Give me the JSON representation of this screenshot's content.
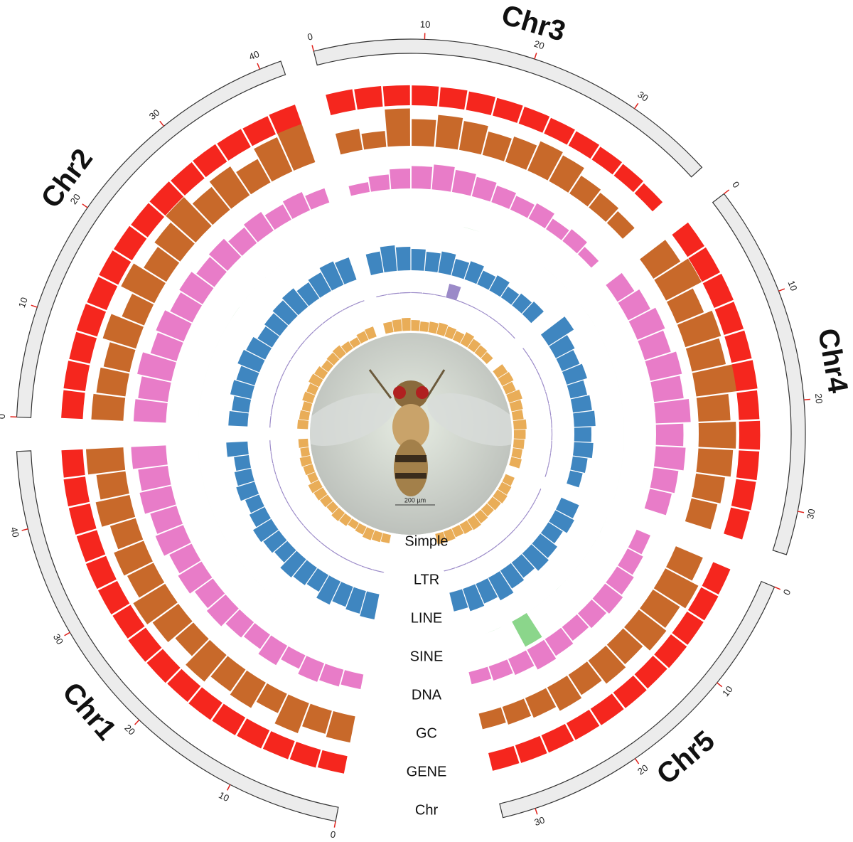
{
  "chart_data": {
    "type": "circos",
    "chromosome_label": "Chr",
    "scale_bar_label": "200 µm",
    "chromosomes": [
      {
        "name": "Chr1",
        "length": 47,
        "ticks": [
          0,
          10,
          20,
          30,
          40
        ]
      },
      {
        "name": "Chr2",
        "length": 42,
        "ticks": [
          0,
          10,
          20,
          30,
          40
        ]
      },
      {
        "name": "Chr3",
        "length": 38,
        "ticks": [
          0,
          10,
          20,
          30
        ]
      },
      {
        "name": "Chr4",
        "length": 34,
        "ticks": [
          0,
          10,
          20,
          30
        ]
      },
      {
        "name": "Chr5",
        "length": 33,
        "ticks": [
          0,
          10,
          20,
          30
        ]
      }
    ],
    "tracks": [
      {
        "name": "Simple",
        "color": "#e9ad58",
        "ylim": [
          0,
          1
        ],
        "values": [
          [
            0.4,
            0.45,
            0.5,
            0.4,
            0.35,
            0.45,
            0.5,
            0.4,
            0.45,
            0.5,
            0.55,
            0.4,
            0.45,
            0.5,
            0.4,
            0.45
          ],
          [
            0.5,
            0.45,
            0.4,
            0.5,
            0.45,
            0.55,
            0.5,
            0.4,
            0.45,
            0.5,
            0.4,
            0.35,
            0.45,
            0.5
          ],
          [
            0.5,
            0.55,
            0.6,
            0.5,
            0.45,
            0.5,
            0.55,
            0.5,
            0.45,
            0.6,
            0.5,
            0.45,
            0.4
          ],
          [
            0.55,
            0.6,
            0.5,
            0.65,
            0.55,
            0.5,
            0.6,
            0.55,
            0.5,
            0.45,
            0.5
          ],
          [
            0.45,
            0.5,
            0.55,
            0.5,
            0.45,
            0.5,
            0.55,
            0.5,
            0.45,
            0.5,
            0.5
          ]
        ]
      },
      {
        "name": "LTR",
        "color": "#9b8ac8",
        "ylim": [
          0,
          1
        ],
        "values": [
          [
            0.05,
            0.05,
            0.05,
            0.05,
            0.05,
            0.05,
            0.05,
            0.05,
            0.05,
            0.05,
            0.05,
            0.05,
            0.05,
            0.05,
            0.05,
            0.05
          ],
          [
            0.05,
            0.05,
            0.05,
            0.05,
            0.05,
            0.05,
            0.05,
            0.05,
            0.05,
            0.05,
            0.05,
            0.05,
            0.05,
            0.05
          ],
          [
            0.05,
            0.05,
            0.05,
            0.05,
            0.05,
            0.05,
            0.9,
            0.05,
            0.05,
            0.05,
            0.05,
            0.05,
            0.05
          ],
          [
            0.05,
            0.05,
            0.05,
            0.05,
            0.05,
            0.05,
            0.05,
            0.05,
            0.05,
            0.05,
            0.05
          ],
          [
            0.05,
            0.05,
            0.05,
            0.05,
            0.05,
            0.05,
            0.05,
            0.05,
            0.05,
            0.05,
            0.05
          ]
        ]
      },
      {
        "name": "LINE",
        "color": "#3f86c0",
        "ylim": [
          0,
          1
        ],
        "values": [
          [
            0.6,
            0.55,
            0.5,
            0.6,
            0.45,
            0.5,
            0.55,
            0.4,
            0.45,
            0.5,
            0.4,
            0.35,
            0.45,
            0.4,
            0.35,
            0.5
          ],
          [
            0.45,
            0.4,
            0.5,
            0.45,
            0.55,
            0.5,
            0.4,
            0.45,
            0.5,
            0.55,
            0.45,
            0.5,
            0.6,
            0.55
          ],
          [
            0.5,
            0.6,
            0.55,
            0.5,
            0.45,
            0.5,
            0.4,
            0.45,
            0.35,
            0.4,
            0.3,
            0.35,
            0.4
          ],
          [
            0.7,
            0.5,
            0.45,
            0.5,
            0.4,
            0.45,
            0.5,
            0.4,
            0.45,
            0.35,
            0.3
          ],
          [
            0.45,
            0.5,
            0.4,
            0.5,
            0.55,
            0.45,
            0.5,
            0.6,
            0.5,
            0.55,
            0.45
          ]
        ]
      },
      {
        "name": "SINE",
        "color": "#8bd68b",
        "ylim": [
          0,
          1
        ],
        "values": [
          [
            0,
            0,
            0,
            0,
            0,
            0,
            0,
            0,
            0,
            0,
            0,
            0,
            0,
            0,
            0,
            0
          ],
          [
            0,
            0,
            0,
            0,
            0,
            0,
            0,
            0,
            0,
            0,
            0,
            0,
            0,
            0
          ],
          [
            0,
            0,
            0,
            0,
            0,
            0,
            0,
            0,
            0,
            0,
            0,
            0,
            0
          ],
          [
            0,
            0,
            0,
            0,
            0,
            0,
            0,
            0,
            0,
            0,
            0
          ],
          [
            0,
            0,
            0,
            0,
            0,
            0,
            0,
            0.8,
            0,
            0,
            0
          ]
        ]
      },
      {
        "name": "DNA",
        "color": "#e87cc8",
        "ylim": [
          0,
          1
        ],
        "values": [
          [
            0.3,
            0.35,
            0.4,
            0.3,
            0.45,
            0.35,
            0.4,
            0.5,
            0.45,
            0.55,
            0.5,
            0.6,
            0.55,
            0.65,
            0.6,
            0.7
          ],
          [
            0.65,
            0.6,
            0.7,
            0.55,
            0.6,
            0.5,
            0.55,
            0.45,
            0.5,
            0.4,
            0.45,
            0.35,
            0.4,
            0.3
          ],
          [
            0.2,
            0.3,
            0.4,
            0.45,
            0.5,
            0.45,
            0.4,
            0.35,
            0.3,
            0.35,
            0.25,
            0.3,
            0.2
          ],
          [
            0.4,
            0.5,
            0.6,
            0.55,
            0.65,
            0.6,
            0.7,
            0.55,
            0.6,
            0.5,
            0.45
          ],
          [
            0.3,
            0.35,
            0.4,
            0.45,
            0.4,
            0.35,
            0.4,
            0.45,
            0.35,
            0.3,
            0.25
          ]
        ]
      },
      {
        "name": "GC",
        "color": "#c8692a",
        "ylim": [
          0,
          1
        ],
        "values": [
          [
            0.5,
            0.45,
            0.6,
            0.4,
            0.55,
            0.5,
            0.65,
            0.45,
            0.6,
            0.7,
            0.55,
            0.6,
            0.5,
            0.65,
            0.55,
            0.7
          ],
          [
            0.6,
            0.55,
            0.5,
            0.65,
            0.45,
            0.7,
            0.5,
            0.6,
            0.75,
            0.55,
            0.65,
            0.5,
            0.7,
            0.8
          ],
          [
            0.4,
            0.3,
            0.7,
            0.5,
            0.6,
            0.55,
            0.45,
            0.5,
            0.6,
            0.55,
            0.4,
            0.35,
            0.3
          ],
          [
            0.6,
            0.75,
            0.55,
            0.7,
            0.65,
            0.8,
            0.6,
            0.7,
            0.65,
            0.55,
            0.5
          ],
          [
            0.55,
            0.7,
            0.6,
            0.65,
            0.5,
            0.55,
            0.45,
            0.5,
            0.4,
            0.35,
            0.3
          ]
        ]
      },
      {
        "name": "GENE",
        "color": "#f5261e",
        "ylim": [
          0,
          1
        ],
        "values": [
          [
            0.78,
            0.82,
            0.85,
            0.88,
            0.9,
            0.92,
            0.9,
            0.93,
            0.95,
            0.92,
            0.94,
            0.95,
            0.93,
            0.95,
            0.96,
            0.94
          ],
          [
            0.95,
            0.96,
            0.94,
            0.95,
            0.93,
            0.95,
            0.94,
            0.92,
            0.93,
            0.9,
            0.92,
            0.9,
            0.88,
            0.9
          ],
          [
            0.92,
            0.9,
            0.88,
            0.87,
            0.85,
            0.82,
            0.8,
            0.78,
            0.75,
            0.72,
            0.68,
            0.65,
            0.6
          ],
          [
            0.88,
            0.9,
            0.92,
            0.9,
            0.91,
            0.93,
            0.9,
            0.92,
            0.9,
            0.88,
            0.85
          ],
          [
            0.82,
            0.85,
            0.86,
            0.88,
            0.85,
            0.87,
            0.86,
            0.84,
            0.83,
            0.82,
            0.8
          ]
        ]
      }
    ]
  }
}
